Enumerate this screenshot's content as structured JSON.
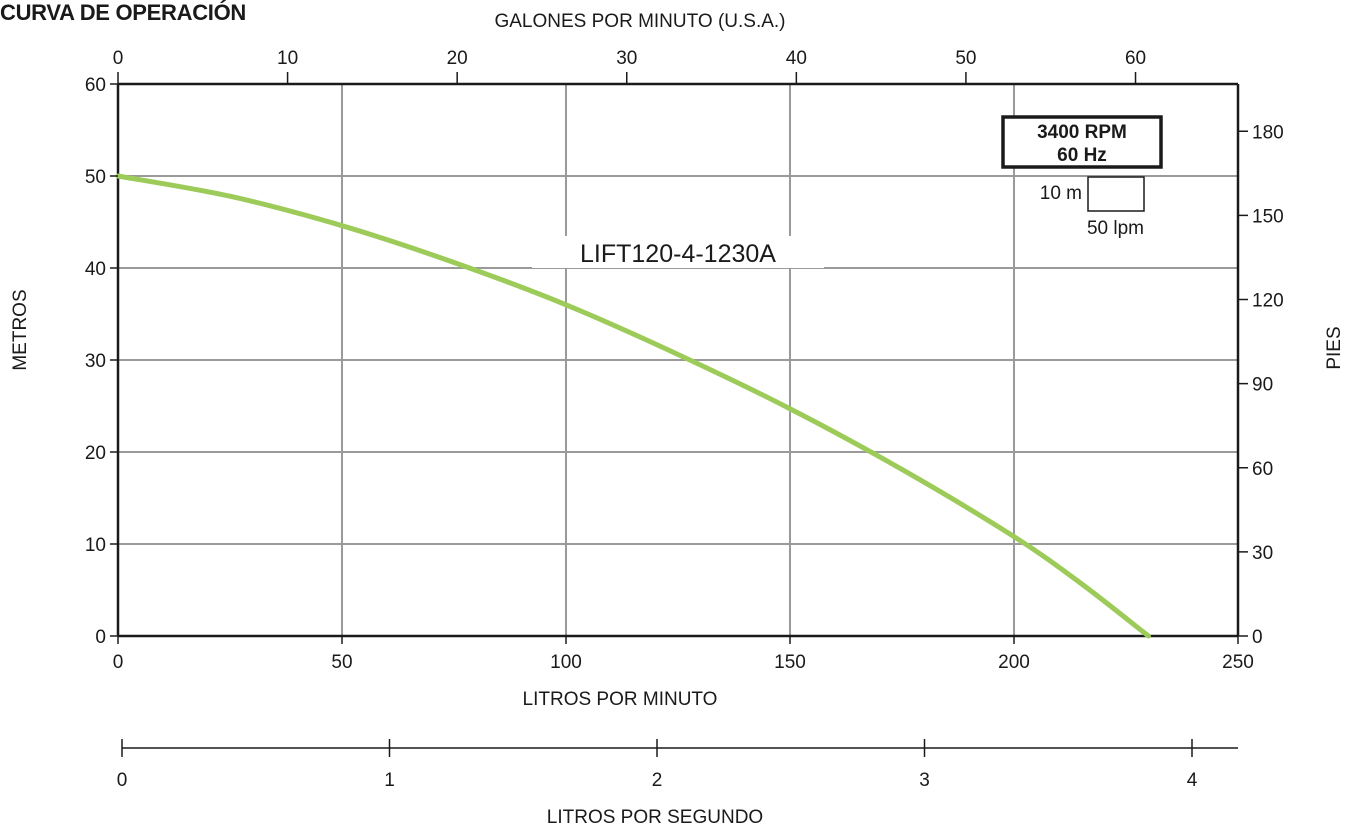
{
  "page": {
    "title": "CURVA DE OPERACIÓN"
  },
  "chart_data": {
    "type": "line",
    "title": "CURVA DE OPERACIÓN",
    "x_bottom": {
      "label": "LITROS POR MINUTO",
      "ticks": [
        0,
        50,
        100,
        150,
        200,
        250
      ],
      "range": [
        0,
        250
      ]
    },
    "x_top": {
      "label": "GALONES POR MINUTO (U.S.A.)",
      "ticks": [
        0,
        10,
        20,
        30,
        40,
        50,
        60
      ]
    },
    "y_left": {
      "label": "METROS",
      "ticks": [
        0,
        10,
        20,
        30,
        40,
        50,
        60
      ],
      "range": [
        0,
        60
      ]
    },
    "y_right": {
      "label": "PIES",
      "ticks": [
        0,
        30,
        60,
        90,
        120,
        150,
        180
      ]
    },
    "x_extra": {
      "label": "LITROS POR SEGUNDO",
      "ticks": [
        0,
        1,
        2,
        3,
        4
      ]
    },
    "series": [
      {
        "name": "LIFT120-4-1230A",
        "color": "#9dcb5a",
        "x": [
          0,
          25,
          50,
          75,
          100,
          125,
          150,
          175,
          200,
          215,
          230
        ],
        "y": [
          50,
          47.8,
          44.6,
          40.6,
          36.0,
          30.6,
          24.7,
          18.1,
          10.8,
          5.7,
          0
        ]
      }
    ],
    "annotations": {
      "rpm": "3400 RPM",
      "hz": "60 Hz",
      "scale_m": "10 m",
      "scale_lpm": "50 lpm"
    },
    "grid": true
  }
}
